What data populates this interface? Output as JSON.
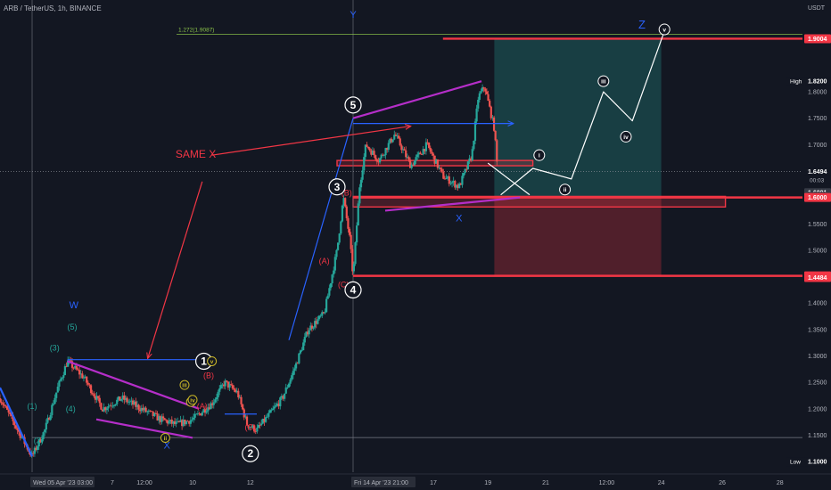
{
  "header": {
    "symbol_line": "ARB / TetherUS, 1h, BINANCE",
    "currency": "USDT"
  },
  "colors": {
    "bg": "#131722",
    "up": "#26a69a",
    "down": "#ef5350",
    "red": "#f23645",
    "purple": "#b52ec9",
    "blue": "#2962ff",
    "white": "#ffffff",
    "olive": "#c9b627",
    "label_green": "#26a69a",
    "label_red": "#f23645",
    "label_blue": "#2962ff"
  },
  "chart_data": {
    "type": "candlestick",
    "ylim": [
      1.08,
      1.94
    ],
    "y_ticks": [
      1.1,
      1.15,
      1.2,
      1.25,
      1.3,
      1.35,
      1.4,
      1.45,
      1.5,
      1.55,
      1.6,
      1.65,
      1.7,
      1.75,
      1.8,
      1.9
    ],
    "x_ticks": [
      {
        "t": 0.0,
        "label": "Wed 05 Apr '23   03:00",
        "boxed": true
      },
      {
        "t": 2.5,
        "label": "7"
      },
      {
        "t": 3.5,
        "label": "12:00"
      },
      {
        "t": 5.0,
        "label": "10"
      },
      {
        "t": 6.8,
        "label": "12"
      },
      {
        "t": 10.0,
        "label": "Fri 14 Apr '23   21:00",
        "boxed": true
      },
      {
        "t": 12.5,
        "label": "17"
      },
      {
        "t": 14.2,
        "label": "19"
      },
      {
        "t": 16.0,
        "label": "21"
      },
      {
        "t": 17.9,
        "label": "12:00"
      },
      {
        "t": 19.6,
        "label": "24"
      },
      {
        "t": 21.5,
        "label": "26"
      },
      {
        "t": 23.3,
        "label": "28"
      }
    ],
    "xlim": [
      -1.0,
      24.0
    ],
    "price_path": [
      [
        -1.0,
        1.22
      ],
      [
        0.0,
        1.11
      ],
      [
        0.4,
        1.16
      ],
      [
        0.8,
        1.24
      ],
      [
        1.1,
        1.29
      ],
      [
        1.6,
        1.26
      ],
      [
        2.2,
        1.2
      ],
      [
        2.8,
        1.22
      ],
      [
        3.4,
        1.2
      ],
      [
        4.0,
        1.18
      ],
      [
        4.5,
        1.17
      ],
      [
        5.0,
        1.18
      ],
      [
        5.6,
        1.21
      ],
      [
        6.0,
        1.25
      ],
      [
        6.4,
        1.23
      ],
      [
        6.7,
        1.17
      ],
      [
        7.0,
        1.16
      ],
      [
        7.4,
        1.19
      ],
      [
        7.8,
        1.22
      ],
      [
        8.2,
        1.28
      ],
      [
        8.6,
        1.35
      ],
      [
        9.1,
        1.38
      ],
      [
        9.5,
        1.5
      ],
      [
        9.7,
        1.6
      ],
      [
        9.9,
        1.52
      ],
      [
        10.0,
        1.45
      ],
      [
        10.2,
        1.62
      ],
      [
        10.4,
        1.7
      ],
      [
        10.8,
        1.67
      ],
      [
        11.3,
        1.72
      ],
      [
        11.8,
        1.66
      ],
      [
        12.3,
        1.7
      ],
      [
        12.8,
        1.64
      ],
      [
        13.3,
        1.62
      ],
      [
        13.7,
        1.68
      ],
      [
        13.9,
        1.79
      ],
      [
        14.1,
        1.81
      ],
      [
        14.4,
        1.73
      ],
      [
        14.5,
        1.65
      ]
    ],
    "price_lines": [
      {
        "y": 1.9004,
        "color": "#f23645",
        "x_from": 12.8
      },
      {
        "y": 1.6,
        "color": "#f23645",
        "x_from": 10.0
      },
      {
        "y": 1.4516,
        "color": "#f23645",
        "x_from": 10.0
      }
    ],
    "fib_line": {
      "y": 1.9087,
      "label": "1.272(1.9087)",
      "x_from": 4.5
    },
    "horizontal_gray": {
      "y": 1.1455,
      "x_from": 0.0
    },
    "vertical_lines": [
      0.0,
      10.0
    ],
    "current_price": 1.6494,
    "zones": [
      {
        "type": "profit",
        "x": [
          14.4,
          19.6
        ],
        "y": [
          1.6,
          1.9004
        ],
        "color": "#26a69a"
      },
      {
        "type": "loss",
        "x": [
          14.4,
          19.6
        ],
        "y": [
          1.4516,
          1.6
        ],
        "color": "#f23645"
      }
    ],
    "rects": [
      {
        "x": [
          10.0,
          21.6
        ],
        "y": [
          1.582,
          1.602
        ],
        "color": "#f23645"
      },
      {
        "x": [
          9.5,
          15.6
        ],
        "y": [
          1.66,
          1.67
        ],
        "color": "#f23645"
      }
    ],
    "lines": [
      {
        "pts": [
          [
            1.1,
            1.29
          ],
          [
            5.2,
            1.2
          ]
        ],
        "color": "#b52ec9",
        "width": 2.2
      },
      {
        "pts": [
          [
            2.0,
            1.18
          ],
          [
            5.0,
            1.145
          ]
        ],
        "color": "#b52ec9",
        "width": 2.2
      },
      {
        "pts": [
          [
            10.0,
            1.75
          ],
          [
            14.0,
            1.82
          ]
        ],
        "color": "#b52ec9",
        "width": 2.2
      },
      {
        "pts": [
          [
            11.0,
            1.575
          ],
          [
            15.2,
            1.6
          ]
        ],
        "color": "#b52ec9",
        "width": 2.2
      },
      {
        "pts": [
          [
            8.0,
            1.33
          ],
          [
            10.0,
            1.75
          ]
        ],
        "color": "#2962ff",
        "width": 1.2
      },
      {
        "pts": [
          [
            -1.0,
            1.24
          ],
          [
            0.0,
            1.11
          ]
        ],
        "color": "#2962ff",
        "width": 2.2
      },
      {
        "pts": [
          [
            10.0,
            1.74
          ],
          [
            15.0,
            1.74
          ]
        ],
        "color": "#2962ff",
        "width": 1.2,
        "arrow": true
      },
      {
        "pts": [
          [
            1.1,
            1.293
          ],
          [
            5.6,
            1.293
          ]
        ],
        "color": "#2962ff",
        "width": 1.2,
        "arrow": true
      },
      {
        "pts": [
          [
            6.0,
            1.19
          ],
          [
            7.0,
            1.19
          ]
        ],
        "color": "#2962ff",
        "width": 1.2
      },
      {
        "pts": [
          [
            5.6,
            1.68
          ],
          [
            11.8,
            1.735
          ]
        ],
        "color": "#f23645",
        "width": 1.2,
        "arrow": true
      },
      {
        "pts": [
          [
            5.3,
            1.63
          ],
          [
            3.6,
            1.295
          ]
        ],
        "color": "#f23645",
        "width": 1.2,
        "arrow": true
      },
      {
        "pts": [
          [
            14.2,
            1.665
          ],
          [
            15.5,
            1.605
          ]
        ],
        "color": "#ffffff",
        "width": 1.2
      },
      {
        "pts": [
          [
            14.6,
            1.605
          ],
          [
            15.6,
            1.655
          ],
          [
            16.8,
            1.635
          ],
          [
            17.8,
            1.8
          ],
          [
            18.7,
            1.745
          ],
          [
            19.7,
            1.915
          ]
        ],
        "color": "#ffffff",
        "width": 1.2
      }
    ],
    "wave_labels": [
      {
        "t": 0.2,
        "y": 1.135,
        "text": "(2)",
        "color": "#26a69a",
        "size": 9
      },
      {
        "t": 0.0,
        "y": 1.2,
        "text": "(1)",
        "color": "#26a69a",
        "size": 9
      },
      {
        "t": 0.7,
        "y": 1.31,
        "text": "(3)",
        "color": "#26a69a",
        "size": 9
      },
      {
        "t": 1.2,
        "y": 1.195,
        "text": "(4)",
        "color": "#26a69a",
        "size": 9
      },
      {
        "t": 1.25,
        "y": 1.35,
        "text": "(5)",
        "color": "#26a69a",
        "size": 9
      },
      {
        "t": 1.3,
        "y": 1.39,
        "text": "W",
        "color": "#2962ff",
        "size": 11
      },
      {
        "t": 4.2,
        "y": 1.125,
        "text": "X",
        "color": "#2962ff",
        "size": 11
      },
      {
        "t": 10.0,
        "y": 1.94,
        "text": "Y",
        "color": "#2962ff",
        "size": 11
      },
      {
        "t": 13.3,
        "y": 1.555,
        "text": "X",
        "color": "#2962ff",
        "size": 11
      },
      {
        "t": 19.0,
        "y": 1.92,
        "text": "Z",
        "color": "#2962ff",
        "size": 13
      },
      {
        "t": 5.5,
        "y": 1.258,
        "text": "(B)",
        "color": "#f23645",
        "size": 9
      },
      {
        "t": 5.3,
        "y": 1.2,
        "text": "(A)",
        "color": "#f23645",
        "size": 9
      },
      {
        "t": 6.8,
        "y": 1.16,
        "text": "(C)",
        "color": "#f23645",
        "size": 9
      },
      {
        "t": 9.8,
        "y": 1.604,
        "text": "(B)",
        "color": "#f23645",
        "size": 9
      },
      {
        "t": 9.1,
        "y": 1.475,
        "text": "(A)",
        "color": "#f23645",
        "size": 9
      },
      {
        "t": 9.7,
        "y": 1.43,
        "text": "(C)",
        "color": "#f23645",
        "size": 9
      },
      {
        "t": 5.1,
        "y": 1.675,
        "text": "SAME  X",
        "color": "#f23645",
        "size": 12
      }
    ],
    "circle_labels": [
      {
        "t": 5.35,
        "y": 1.29,
        "text": "1",
        "r": 9,
        "filled": true
      },
      {
        "t": 6.8,
        "y": 1.115,
        "text": "2",
        "r": 9,
        "filled": true
      },
      {
        "t": 9.5,
        "y": 1.62,
        "text": "3",
        "r": 9,
        "filled": true
      },
      {
        "t": 10.0,
        "y": 1.425,
        "text": "4",
        "r": 9,
        "filled": true
      },
      {
        "t": 10.0,
        "y": 1.775,
        "text": "5",
        "r": 9,
        "filled": true
      },
      {
        "t": 4.95,
        "y": 1.213,
        "text": "i",
        "r": 5,
        "olive": true
      },
      {
        "t": 4.15,
        "y": 1.145,
        "text": "ii",
        "r": 5,
        "olive": true
      },
      {
        "t": 4.75,
        "y": 1.245,
        "text": "iii",
        "r": 5,
        "olive": true
      },
      {
        "t": 5.0,
        "y": 1.217,
        "text": "iv",
        "r": 5,
        "olive": true
      },
      {
        "t": 5.6,
        "y": 1.29,
        "text": "v",
        "r": 5,
        "olive": true
      },
      {
        "t": 15.8,
        "y": 1.68,
        "text": "i",
        "r": 6
      },
      {
        "t": 16.6,
        "y": 1.615,
        "text": "ii",
        "r": 6
      },
      {
        "t": 17.8,
        "y": 1.82,
        "text": "iii",
        "r": 6
      },
      {
        "t": 18.5,
        "y": 1.715,
        "text": "iv",
        "r": 6
      },
      {
        "t": 19.7,
        "y": 1.918,
        "text": "v",
        "r": 6
      }
    ],
    "axis_badges": [
      {
        "y": 1.9004,
        "text": "1.9004",
        "bg": "#f23645",
        "fg": "#ffffff"
      },
      {
        "y": 1.82,
        "text": "1.8200",
        "bg": "#131722",
        "fg": "#ffffff",
        "tag": "High"
      },
      {
        "y": 1.6494,
        "text": "1.6494",
        "bg": "#131722",
        "fg": "#ffffff",
        "sub": "00:03"
      },
      {
        "y": 1.6091,
        "text": "1.6091",
        "bg": "#363a45",
        "fg": "#ffffff"
      },
      {
        "y": 1.6021,
        "text": "1.6021",
        "bg": "#363a45",
        "fg": "#ffffff"
      },
      {
        "y": 1.6,
        "text": "1.6000",
        "bg": "#f23645",
        "fg": "#ffffff"
      },
      {
        "y": 1.4516,
        "text": "1.4516",
        "bg": "#f23645",
        "fg": "#ffffff"
      },
      {
        "y": 1.4484,
        "text": "1.4484",
        "bg": "#f23645",
        "fg": "#ffffff"
      },
      {
        "y": 1.1,
        "text": "1.1000",
        "bg": "#131722",
        "fg": "#ffffff",
        "tag": "Low"
      }
    ]
  }
}
